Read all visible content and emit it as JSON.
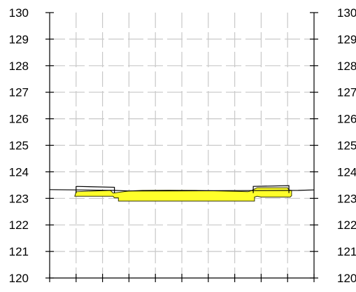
{
  "chart_data": {
    "type": "cross-section",
    "ylim": [
      120,
      130
    ],
    "y_ticks": [
      "120",
      "121",
      "122",
      "123",
      "124",
      "125",
      "126",
      "127",
      "128",
      "129",
      "130"
    ],
    "x_divisions": 10,
    "grid": true,
    "ground_line": {
      "x": [
        0,
        1,
        2.4,
        3,
        9.4,
        10
      ],
      "y": [
        123.33,
        123.32,
        123.3,
        123.28,
        123.3,
        123.32
      ]
    },
    "existing_profile": {
      "x": [
        1,
        1,
        2.45,
        2.45,
        7.7,
        7.7,
        9.05,
        9.05
      ],
      "y": [
        123.2,
        123.45,
        123.42,
        123.2,
        123.2,
        123.45,
        123.48,
        123.2
      ]
    },
    "fill_section": {
      "x": [
        0.95,
        1.0,
        2.3,
        2.4,
        2.55,
        3.0,
        3.5,
        4.5,
        5.5,
        6.5,
        7.5,
        7.6,
        7.7,
        7.85,
        8.0,
        9.0,
        9.05,
        9.15,
        9.15,
        9.1,
        8.0,
        7.85,
        7.75,
        7.75,
        2.6,
        2.6,
        2.45,
        2.4,
        1.0,
        0.95
      ],
      "y": [
        123.08,
        123.25,
        123.3,
        123.2,
        123.22,
        123.28,
        123.3,
        123.31,
        123.3,
        123.28,
        123.25,
        123.28,
        123.33,
        123.4,
        123.4,
        123.4,
        123.32,
        123.3,
        123.1,
        123.05,
        123.05,
        123.08,
        123.05,
        122.9,
        122.9,
        123.02,
        123.02,
        123.08,
        123.08,
        123.08
      ]
    },
    "colors": {
      "grid": "#c8c8c8",
      "axis": "#000000",
      "ground": "#000000",
      "fill": "#ffff2a",
      "fill_stroke": "#333300"
    }
  }
}
